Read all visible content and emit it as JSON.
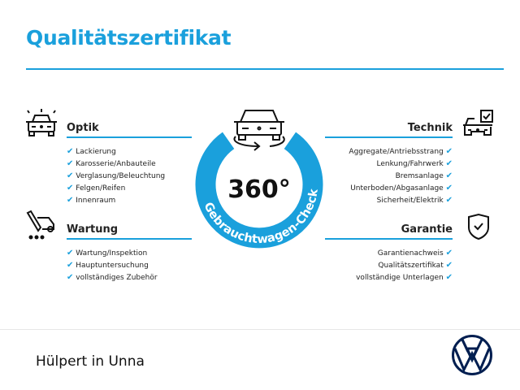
{
  "header": {
    "title": "Qualitätszertifikat"
  },
  "colors": {
    "accent": "#1aa0dc",
    "vw_navy": "#001e50"
  },
  "center_badge": {
    "value": "360°",
    "arc_text": "Gebrauchtwagen-Check",
    "icon": "car-rotate-icon"
  },
  "sections": {
    "optik": {
      "title": "Optik",
      "icon": "car-lights-icon",
      "items": [
        "Lackierung",
        "Karosserie/Anbauteile",
        "Verglasung/Beleuchtung",
        "Felgen/Reifen",
        "Innenraum"
      ]
    },
    "wartung": {
      "title": "Wartung",
      "icon": "service-wrench-icon",
      "items": [
        "Wartung/Inspektion",
        "Hauptuntersuchung",
        "vollständiges Zubehör"
      ]
    },
    "technik": {
      "title": "Technik",
      "icon": "car-checklist-icon",
      "items": [
        "Aggregate/Antriebsstrang",
        "Lenkung/Fahrwerk",
        "Bremsanlage",
        "Unterboden/Abgasanlage",
        "Sicherheit/Elektrik"
      ]
    },
    "garantie": {
      "title": "Garantie",
      "icon": "shield-check-icon",
      "items": [
        "Garantienachweis",
        "Qualitätszertifikat",
        "vollständige Unterlagen"
      ]
    }
  },
  "check_glyph": "✔",
  "footer": {
    "dealer": "Hülpert in Unna",
    "logo": "vw-logo"
  }
}
